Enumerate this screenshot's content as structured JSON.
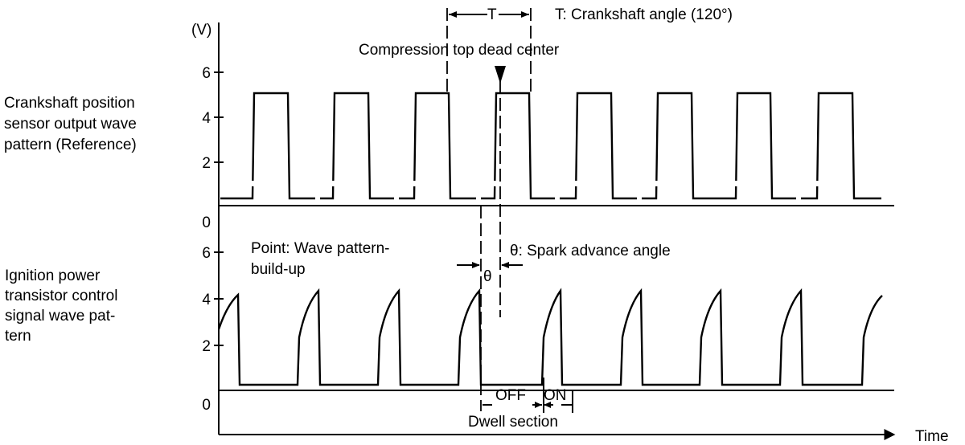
{
  "axes": {
    "unit": "(V)",
    "time_label": "Time",
    "top_ticks": [
      "6",
      "4",
      "2",
      "0"
    ],
    "bottom_ticks": [
      "6",
      "4",
      "2",
      "0"
    ]
  },
  "labels": {
    "period_symbol": "T",
    "period_legend": "T: Crankshaft angle (120°)",
    "tdc": "Compression top dead center",
    "point_line1": "Point: Wave pattern-",
    "point_line2": "build-up",
    "theta_symbol": "θ",
    "theta_legend": "θ: Spark advance angle",
    "off": "OFF",
    "on": "ON",
    "dwell": "Dwell section"
  },
  "signals": {
    "crankshaft": [
      "Crankshaft position",
      "sensor output wave",
      "pattern (Reference)"
    ],
    "ignition": [
      "Ignition power",
      "transistor control",
      "signal wave pat-",
      "tern"
    ]
  },
  "waveforms": {
    "crankshaft_sensor": {
      "high_v": 5,
      "low_v": 0.4,
      "pulse_count": 8,
      "shape": "square"
    },
    "ignition_control": {
      "high_v": 4.2,
      "low_v": 0.3,
      "pulse_count": 8,
      "shape": "ramp-up then drop"
    }
  }
}
